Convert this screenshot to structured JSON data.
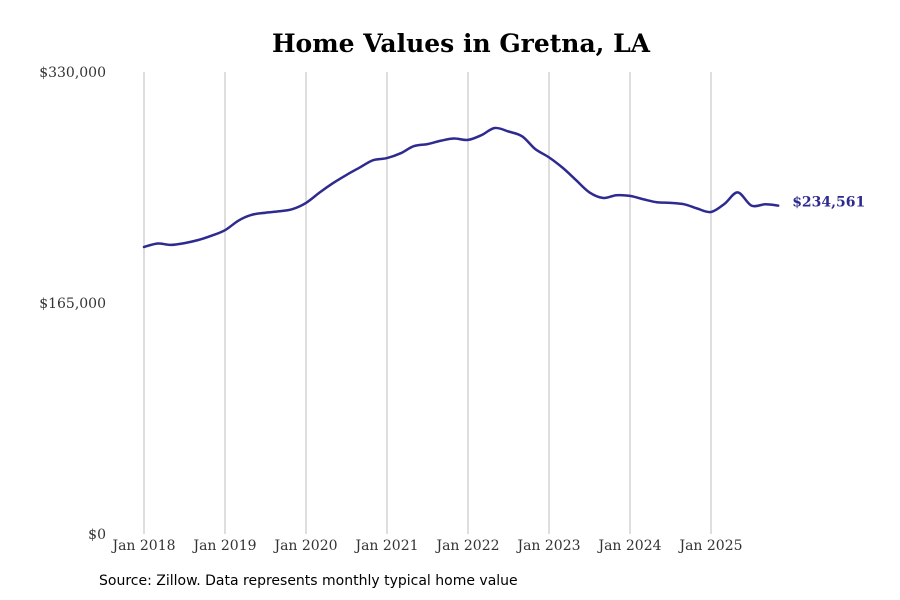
{
  "colors": {
    "line": "#2e2a8f",
    "grid": "#bdbdbd"
  },
  "chart_data": {
    "type": "line",
    "title": "Home Values in Gretna, LA",
    "xlabel": "",
    "ylabel": "",
    "ylim": [
      0,
      330000
    ],
    "y_ticks": [
      0,
      165000,
      330000
    ],
    "y_tick_labels": [
      "$0",
      "$165,000",
      "$330,000"
    ],
    "xlim": [
      2018.0,
      2026.0
    ],
    "x_ticks": [
      2018,
      2019,
      2020,
      2021,
      2022,
      2023,
      2024,
      2025
    ],
    "x_tick_labels": [
      "Jan 2018",
      "Jan 2019",
      "Jan 2020",
      "Jan 2021",
      "Jan 2022",
      "Jan 2023",
      "Jan 2024",
      "Jan 2025"
    ],
    "grid": "vertical",
    "end_label": "$234,561",
    "series": [
      {
        "name": "Typical home value",
        "x": [
          2018.0,
          2018.17,
          2018.33,
          2018.5,
          2018.67,
          2018.83,
          2019.0,
          2019.17,
          2019.33,
          2019.5,
          2019.67,
          2019.83,
          2020.0,
          2020.17,
          2020.33,
          2020.5,
          2020.67,
          2020.83,
          2021.0,
          2021.17,
          2021.33,
          2021.5,
          2021.67,
          2021.83,
          2022.0,
          2022.17,
          2022.33,
          2022.5,
          2022.67,
          2022.83,
          2023.0,
          2023.17,
          2023.33,
          2023.5,
          2023.67,
          2023.83,
          2024.0,
          2024.17,
          2024.33,
          2024.5,
          2024.67,
          2024.83,
          2025.0,
          2025.17,
          2025.33,
          2025.5,
          2025.67,
          2025.83
        ],
        "values": [
          205000,
          207500,
          206500,
          207800,
          210000,
          213000,
          217000,
          224000,
          228000,
          229500,
          230500,
          232000,
          236500,
          244000,
          250500,
          256500,
          262000,
          267000,
          268500,
          272000,
          277000,
          278500,
          281000,
          282500,
          281500,
          285000,
          290000,
          287500,
          284000,
          275000,
          269000,
          261500,
          253000,
          244000,
          240000,
          242000,
          241500,
          239000,
          237000,
          236500,
          235500,
          232500,
          230000,
          236000,
          244000,
          234561,
          235500,
          234561
        ]
      }
    ]
  },
  "footer": {
    "source": "Source: Zillow. Data represents monthly typical home value"
  }
}
